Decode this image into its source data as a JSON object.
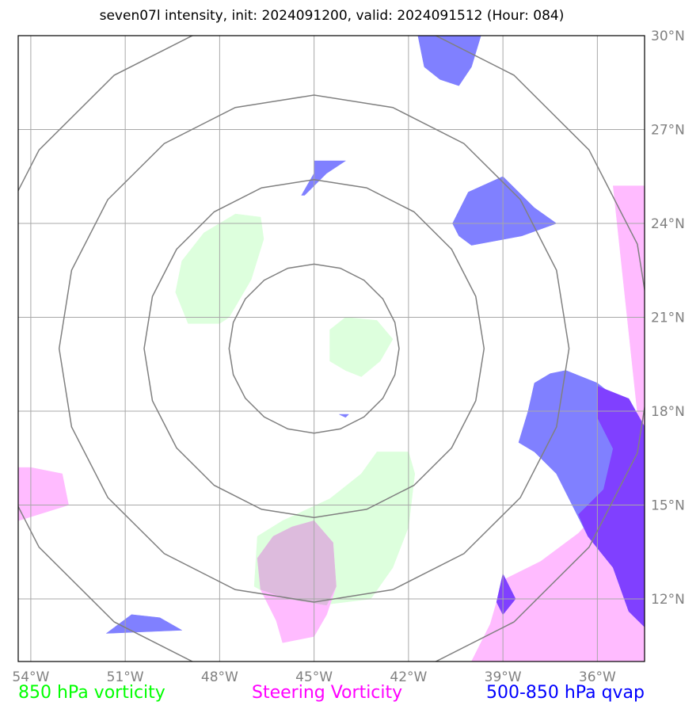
{
  "chart_data": {
    "type": "map",
    "title": "seven07l intensity, init: 2024091200, valid: 2024091512 (Hour: 084)",
    "xlim": [
      -54.4,
      -34.5
    ],
    "ylim": [
      10.0,
      30.0
    ],
    "x_ticks": [
      {
        "value": -54,
        "label": "54°W"
      },
      {
        "value": -51,
        "label": "51°W"
      },
      {
        "value": -48,
        "label": "48°W"
      },
      {
        "value": -45,
        "label": "45°W"
      },
      {
        "value": -42,
        "label": "42°W"
      },
      {
        "value": -39,
        "label": "39°W"
      },
      {
        "value": -36,
        "label": "36°W"
      }
    ],
    "y_ticks": [
      {
        "value": 30,
        "label": "30°N"
      },
      {
        "value": 27,
        "label": "27°N"
      },
      {
        "value": 24,
        "label": "24°N"
      },
      {
        "value": 21,
        "label": "21°N"
      },
      {
        "value": 18,
        "label": "18°N"
      },
      {
        "value": 15,
        "label": "15°N"
      },
      {
        "value": 12,
        "label": "12°N"
      }
    ],
    "grid": true,
    "range_rings": {
      "center": [
        -45.0,
        20.0
      ],
      "radii_deg": [
        2.7,
        5.4,
        8.1,
        10.8
      ],
      "color": "#808080"
    },
    "legend": [
      {
        "label": "850 hPa vorticity",
        "color": "#00ff00"
      },
      {
        "label": "Steering Vorticity",
        "color": "#ff00ff"
      },
      {
        "label": "500-850 hPa qvap",
        "color": "#0000ff"
      }
    ],
    "colors": {
      "green_fill": "#ddffdd",
      "pink_fill": "#ffbbff",
      "blue_fill": "#8080ff",
      "overlap_pink_blue": "#8040ff",
      "overlap_green_pink": "#ddbbdd"
    },
    "green_regions": [
      [
        [
          -47.5,
          24.3
        ],
        [
          -46.7,
          24.2
        ],
        [
          -46.6,
          23.5
        ],
        [
          -47.0,
          22.2
        ],
        [
          -47.7,
          21.0
        ],
        [
          -48.0,
          20.8
        ],
        [
          -49.0,
          20.8
        ],
        [
          -49.4,
          21.8
        ],
        [
          -49.2,
          22.8
        ],
        [
          -48.5,
          23.7
        ]
      ],
      [
        [
          -44.0,
          21.0
        ],
        [
          -43.0,
          20.9
        ],
        [
          -42.5,
          20.3
        ],
        [
          -42.9,
          19.6
        ],
        [
          -43.5,
          19.1
        ],
        [
          -44.0,
          19.3
        ],
        [
          -44.5,
          19.6
        ],
        [
          -44.5,
          20.6
        ]
      ],
      [
        [
          -43.0,
          16.7
        ],
        [
          -42.0,
          16.7
        ],
        [
          -41.8,
          16.0
        ],
        [
          -42.0,
          14.3
        ],
        [
          -42.5,
          13.0
        ],
        [
          -43.2,
          12.0
        ],
        [
          -44.8,
          11.8
        ],
        [
          -46.0,
          11.9
        ],
        [
          -46.9,
          12.4
        ],
        [
          -46.8,
          14.0
        ],
        [
          -46.0,
          14.5
        ],
        [
          -44.5,
          15.2
        ],
        [
          -43.5,
          16.0
        ]
      ]
    ],
    "pink_regions": [
      [
        [
          -35.5,
          25.2
        ],
        [
          -34.5,
          25.2
        ],
        [
          -34.5,
          10.0
        ],
        [
          -40.0,
          10.0
        ],
        [
          -39.4,
          11.2
        ],
        [
          -39.0,
          12.6
        ],
        [
          -37.8,
          13.2
        ],
        [
          -36.6,
          14.1
        ],
        [
          -35.6,
          15.2
        ],
        [
          -34.5,
          15.8
        ]
      ],
      [
        [
          -54.4,
          16.2
        ],
        [
          -54.0,
          16.2
        ],
        [
          -53.0,
          16.0
        ],
        [
          -52.8,
          15.0
        ],
        [
          -54.4,
          14.5
        ]
      ],
      [
        [
          -45.7,
          14.3
        ],
        [
          -45.0,
          14.5
        ],
        [
          -44.4,
          13.8
        ],
        [
          -44.3,
          12.4
        ],
        [
          -44.6,
          11.5
        ],
        [
          -45.0,
          10.8
        ],
        [
          -46.0,
          10.6
        ],
        [
          -46.2,
          11.3
        ],
        [
          -46.7,
          12.3
        ],
        [
          -46.8,
          13.3
        ],
        [
          -46.3,
          14.0
        ]
      ]
    ],
    "blue_regions": [
      [
        [
          -41.7,
          30.0
        ],
        [
          -39.7,
          30.0
        ],
        [
          -40.0,
          29.0
        ],
        [
          -40.4,
          28.4
        ],
        [
          -41.0,
          28.6
        ],
        [
          -41.5,
          29.0
        ]
      ],
      [
        [
          -45.0,
          26.0
        ],
        [
          -44.0,
          26.0
        ],
        [
          -44.6,
          25.6
        ],
        [
          -45.3,
          24.9
        ],
        [
          -45.4,
          24.9
        ],
        [
          -45.0,
          25.6
        ]
      ],
      [
        [
          -40.1,
          25.0
        ],
        [
          -39.0,
          25.5
        ],
        [
          -38.0,
          24.5
        ],
        [
          -37.3,
          24.0
        ],
        [
          -38.4,
          23.6
        ],
        [
          -40.0,
          23.3
        ],
        [
          -40.4,
          23.6
        ],
        [
          -40.6,
          24.0
        ]
      ],
      [
        [
          -37.0,
          19.3
        ],
        [
          -36.0,
          18.9
        ],
        [
          -35.0,
          18.1
        ],
        [
          -34.5,
          17.5
        ],
        [
          -34.5,
          11.1
        ],
        [
          -35.0,
          11.6
        ],
        [
          -35.5,
          13.0
        ],
        [
          -36.3,
          14.0
        ],
        [
          -36.8,
          15.0
        ],
        [
          -37.3,
          16.0
        ],
        [
          -38.0,
          16.7
        ],
        [
          -38.5,
          17.0
        ],
        [
          -38.2,
          18.0
        ],
        [
          -38.0,
          18.9
        ],
        [
          -37.5,
          19.2
        ]
      ],
      [
        [
          -44.2,
          17.9
        ],
        [
          -43.9,
          17.9
        ],
        [
          -44.0,
          17.8
        ]
      ],
      [
        [
          -39.0,
          12.8
        ],
        [
          -38.6,
          12.0
        ],
        [
          -39.0,
          11.5
        ],
        [
          -39.2,
          11.9
        ]
      ],
      [
        [
          -50.8,
          11.5
        ],
        [
          -49.9,
          11.4
        ],
        [
          -49.2,
          11.0
        ],
        [
          -51.6,
          10.9
        ]
      ]
    ],
    "overlap_pink_blue_regions": [
      [
        [
          -36.0,
          18.8
        ],
        [
          -35.0,
          18.4
        ],
        [
          -34.5,
          17.5
        ],
        [
          -34.5,
          11.1
        ],
        [
          -35.0,
          11.6
        ],
        [
          -35.5,
          13.0
        ],
        [
          -36.3,
          14.0
        ],
        [
          -36.6,
          14.7
        ],
        [
          -35.8,
          15.5
        ],
        [
          -35.5,
          16.8
        ],
        [
          -36.0,
          17.8
        ]
      ],
      [
        [
          -39.0,
          12.8
        ],
        [
          -38.6,
          12.0
        ],
        [
          -39.0,
          11.5
        ],
        [
          -39.2,
          11.9
        ]
      ]
    ],
    "overlap_green_pink_regions": [
      [
        [
          -45.7,
          14.3
        ],
        [
          -45.0,
          14.5
        ],
        [
          -44.4,
          13.8
        ],
        [
          -44.3,
          12.4
        ],
        [
          -44.6,
          11.8
        ],
        [
          -45.8,
          12.0
        ],
        [
          -46.7,
          12.3
        ],
        [
          -46.8,
          13.3
        ],
        [
          -46.3,
          14.0
        ]
      ]
    ]
  }
}
